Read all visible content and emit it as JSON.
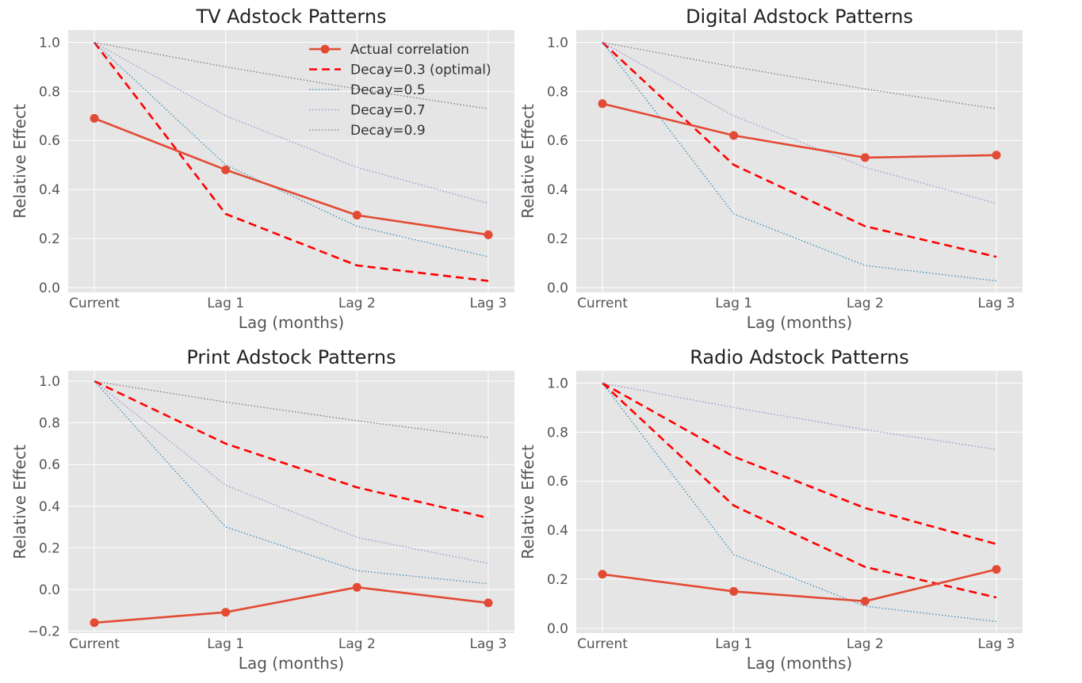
{
  "figure": {
    "colors": {
      "background": "#ffffff",
      "plot_background": "#e5e5e5",
      "grid": "#ffffff",
      "actual": "#e24a33",
      "optimal": "#ff0000",
      "decay_05": "#348abd",
      "decay_07": "#988ed5",
      "decay_09": "#777777"
    }
  },
  "chart_data": [
    {
      "type": "line",
      "title": "TV Adstock Patterns",
      "xlabel": "Lag (months)",
      "ylabel": "Relative Effect",
      "categories": [
        "Current",
        "Lag 1",
        "Lag 2",
        "Lag 3"
      ],
      "ylim": [
        -0.02,
        1.05
      ],
      "yticks": [
        "0.0",
        "0.2",
        "0.4",
        "0.6",
        "0.8",
        "1.0"
      ],
      "grid": true,
      "legend": "top-right",
      "series": [
        {
          "name": "Actual correlation",
          "style": "actual",
          "values": [
            0.69,
            0.48,
            0.295,
            0.215
          ]
        },
        {
          "name": "Decay=0.3 (optimal)",
          "style": "optimal",
          "values": [
            1.0,
            0.3,
            0.09,
            0.027
          ]
        },
        {
          "name": "Decay=0.5",
          "style": "decay_05",
          "values": [
            1.0,
            0.5,
            0.25,
            0.125
          ]
        },
        {
          "name": "Decay=0.7",
          "style": "decay_07",
          "values": [
            1.0,
            0.7,
            0.49,
            0.343
          ]
        },
        {
          "name": "Decay=0.9",
          "style": "decay_09",
          "values": [
            1.0,
            0.9,
            0.81,
            0.729
          ]
        }
      ]
    },
    {
      "type": "line",
      "title": "Digital Adstock Patterns",
      "xlabel": "Lag (months)",
      "ylabel": "Relative Effect",
      "categories": [
        "Current",
        "Lag 1",
        "Lag 2",
        "Lag 3"
      ],
      "ylim": [
        -0.02,
        1.05
      ],
      "yticks": [
        "0.0",
        "0.2",
        "0.4",
        "0.6",
        "0.8",
        "1.0"
      ],
      "grid": true,
      "series": [
        {
          "name": "Actual correlation",
          "style": "actual",
          "values": [
            0.75,
            0.62,
            0.53,
            0.54
          ]
        },
        {
          "style": "optimal",
          "values": [
            1.0,
            0.5,
            0.25,
            0.125
          ]
        },
        {
          "style": "decay_05",
          "values": [
            1.0,
            0.3,
            0.09,
            0.027
          ]
        },
        {
          "style": "decay_07",
          "values": [
            1.0,
            0.7,
            0.49,
            0.343
          ]
        },
        {
          "style": "decay_09",
          "values": [
            1.0,
            0.9,
            0.81,
            0.729
          ]
        }
      ]
    },
    {
      "type": "line",
      "title": "Print Adstock Patterns",
      "xlabel": "Lag (months)",
      "ylabel": "Relative Effect",
      "categories": [
        "Current",
        "Lag 1",
        "Lag 2",
        "Lag 3"
      ],
      "ylim": [
        -0.21,
        1.05
      ],
      "yticks": [
        "−0.2",
        "0.0",
        "0.2",
        "0.4",
        "0.6",
        "0.8",
        "1.0"
      ],
      "grid": true,
      "series": [
        {
          "name": "Actual correlation",
          "style": "actual",
          "values": [
            -0.16,
            -0.11,
            0.01,
            -0.065
          ]
        },
        {
          "style": "optimal",
          "values": [
            1.0,
            0.7,
            0.49,
            0.343
          ]
        },
        {
          "style": "decay_05",
          "values": [
            1.0,
            0.3,
            0.09,
            0.027
          ]
        },
        {
          "style": "decay_07",
          "values": [
            1.0,
            0.5,
            0.25,
            0.125
          ]
        },
        {
          "style": "decay_09",
          "values": [
            1.0,
            0.9,
            0.81,
            0.729
          ]
        }
      ]
    },
    {
      "type": "line",
      "title": "Radio Adstock Patterns",
      "xlabel": "Lag (months)",
      "ylabel": "Relative Effect",
      "categories": [
        "Current",
        "Lag 1",
        "Lag 2",
        "Lag 3"
      ],
      "ylim": [
        -0.02,
        1.05
      ],
      "yticks": [
        "0.0",
        "0.2",
        "0.4",
        "0.6",
        "0.8",
        "1.0"
      ],
      "grid": true,
      "series": [
        {
          "name": "Actual correlation",
          "style": "actual",
          "values": [
            0.22,
            0.15,
            0.11,
            0.24
          ]
        },
        {
          "style": "optimal",
          "values": [
            1.0,
            0.7,
            0.49,
            0.343
          ]
        },
        {
          "style": "optimal",
          "values": [
            1.0,
            0.5,
            0.25,
            0.125
          ]
        },
        {
          "style": "decay_05",
          "values": [
            1.0,
            0.3,
            0.09,
            0.027
          ]
        },
        {
          "style": "decay_07",
          "values": [
            1.0,
            0.9,
            0.81,
            0.729
          ]
        }
      ]
    }
  ]
}
